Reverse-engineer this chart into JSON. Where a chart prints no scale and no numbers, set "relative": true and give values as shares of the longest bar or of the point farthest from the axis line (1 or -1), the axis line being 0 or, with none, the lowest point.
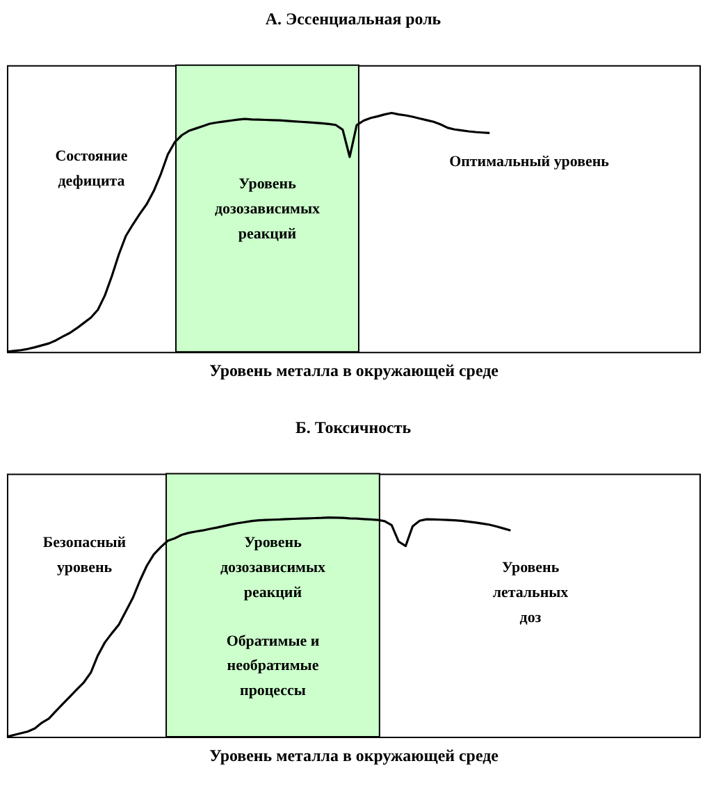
{
  "chart_data": [
    {
      "type": "line",
      "title": "А. Эссенциальная роль",
      "xlabel": "Уровень металла в окружающей среде",
      "relative": true,
      "tick_labels": false,
      "grid": false,
      "marker": "none",
      "line_style": "solid",
      "categories": [
        null,
        null,
        null,
        null,
        null,
        null,
        null,
        null,
        null,
        null,
        null,
        null,
        null,
        null,
        null,
        null,
        null,
        null,
        null,
        null,
        null,
        null,
        null,
        null,
        null,
        null,
        null,
        null,
        null,
        null,
        null,
        null,
        null,
        null,
        null,
        null,
        null,
        null,
        null,
        null,
        null,
        null,
        null,
        null,
        null,
        null,
        null,
        null,
        null,
        null,
        null,
        null,
        null,
        null,
        null,
        null,
        null,
        null,
        null,
        null,
        null,
        null,
        null,
        null,
        null,
        null,
        null,
        null,
        null,
        null,
        null,
        null,
        null,
        null,
        null,
        null,
        null,
        null,
        null,
        null,
        null,
        null,
        null,
        null,
        null,
        null,
        null,
        null,
        null,
        null,
        null,
        null,
        null,
        null,
        null,
        null,
        null,
        null,
        null,
        null
      ],
      "series": [
        {
          "color": "#000000",
          "values": [
            0,
            0.004,
            0.007,
            0.012,
            0.019,
            0.027,
            0.035,
            0.048,
            0.064,
            0.079,
            0.099,
            0.121,
            0.143,
            0.176,
            0.236,
            0.317,
            0.408,
            0.485,
            0.533,
            0.578,
            0.619,
            0.674,
            0.744,
            0.826,
            0.878,
            0.907,
            0.925,
            0.935,
            0.945,
            0.955,
            0.96,
            0.964,
            0.968,
            0.972,
            0.975,
            0.973,
            0.972,
            0.971,
            0.97,
            0.969,
            0.967,
            0.965,
            0.963,
            0.961,
            0.959,
            0.957,
            0.954,
            0.95,
            0.93,
            0.816,
            0.949,
            0.968,
            0.979,
            0.986,
            0.994,
            1,
            0.994,
            0.99,
            0.984,
            0.977,
            0.97,
            0.963,
            0.952,
            0.938,
            0.931,
            0.927,
            0.923,
            0.92,
            0.918,
            0.916,
            null,
            null,
            null,
            null,
            null,
            null,
            null,
            null,
            null,
            null,
            null,
            null,
            null,
            null,
            null,
            null,
            null,
            null,
            null,
            null,
            null,
            null,
            null,
            null,
            null,
            null,
            null,
            null,
            null,
            null
          ]
        }
      ],
      "annotations": [
        "Состояние\nдефицита",
        "Уровень\nдозозависимых\nреакций",
        "Оптимальный уровень"
      ]
    },
    {
      "type": "line",
      "title": "Б. Токсичность",
      "xlabel": "Уровень металла в окружающей среде",
      "relative": true,
      "tick_labels": false,
      "grid": false,
      "marker": "none",
      "line_style": "solid",
      "categories": [
        null,
        null,
        null,
        null,
        null,
        null,
        null,
        null,
        null,
        null,
        null,
        null,
        null,
        null,
        null,
        null,
        null,
        null,
        null,
        null,
        null,
        null,
        null,
        null,
        null,
        null,
        null,
        null,
        null,
        null,
        null,
        null,
        null,
        null,
        null,
        null,
        null,
        null,
        null,
        null,
        null,
        null,
        null,
        null,
        null,
        null,
        null,
        null,
        null,
        null,
        null,
        null,
        null,
        null,
        null,
        null,
        null,
        null,
        null,
        null,
        null,
        null,
        null,
        null,
        null,
        null,
        null,
        null,
        null,
        null,
        null,
        null,
        null,
        null,
        null,
        null,
        null,
        null,
        null,
        null,
        null,
        null,
        null,
        null,
        null,
        null,
        null,
        null,
        null,
        null,
        null,
        null,
        null,
        null,
        null,
        null,
        null,
        null,
        null,
        null
      ],
      "series": [
        {
          "color": "#000000",
          "values": [
            0,
            0.008,
            0.016,
            0.024,
            0.038,
            0.064,
            0.083,
            0.117,
            0.15,
            0.183,
            0.216,
            0.248,
            0.293,
            0.371,
            0.43,
            0.472,
            0.511,
            0.572,
            0.633,
            0.711,
            0.78,
            0.832,
            0.865,
            0.894,
            0.905,
            0.921,
            0.93,
            0.936,
            0.941,
            0.948,
            0.954,
            0.961,
            0.968,
            0.974,
            0.979,
            0.984,
            0.987,
            0.989,
            0.99,
            0.991,
            0.993,
            0.994,
            0.995,
            0.996,
            0.997,
            0.998,
            1,
            0.999,
            0.998,
            0.996,
            0.995,
            0.993,
            0.991,
            0.989,
            0.983,
            0.965,
            0.89,
            0.87,
            0.96,
            0.985,
            0.992,
            0.991,
            0.99,
            0.989,
            0.987,
            0.985,
            0.981,
            0.977,
            0.972,
            0.967,
            0.959,
            0.95,
            0.941,
            null,
            null,
            null,
            null,
            null,
            null,
            null,
            null,
            null,
            null,
            null,
            null,
            null,
            null,
            null,
            null,
            null,
            null,
            null,
            null,
            null,
            null,
            null,
            null,
            null,
            null,
            null
          ]
        }
      ],
      "annotations": [
        "Безопасный\nуровень",
        "Уровень\nдозозависимых\nреакций",
        "Обратимые и\nнеобратимые\nпроцессы",
        "Уровень\nлетальных\nдоз"
      ]
    }
  ]
}
